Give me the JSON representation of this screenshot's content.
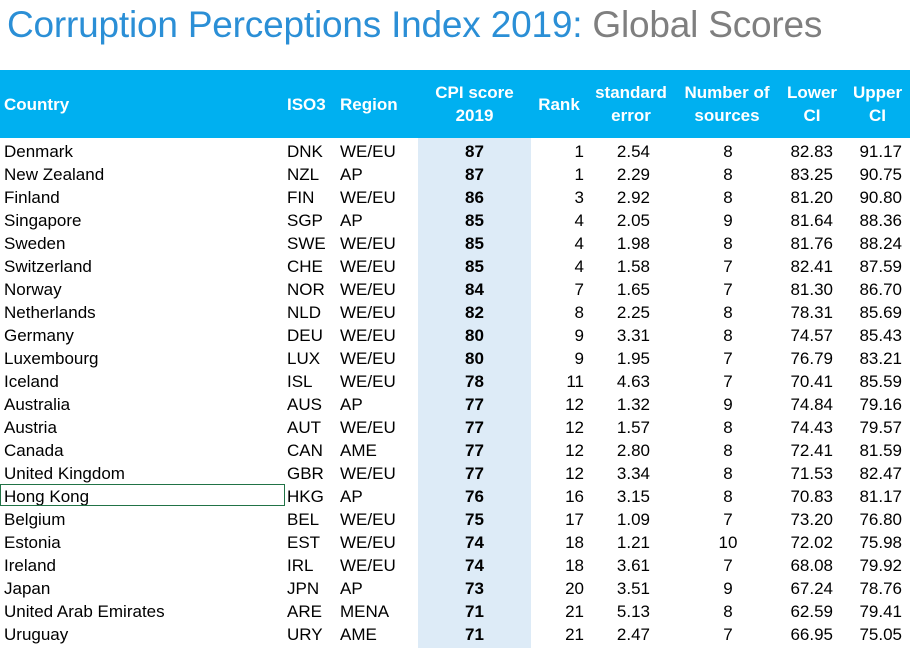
{
  "title": {
    "main": "Corruption Perceptions Index 2019:",
    "sub": "Global Scores"
  },
  "table": {
    "headers": {
      "country": "Country",
      "iso3": "ISO3",
      "region": "Region",
      "cpi_line1": "CPI score",
      "cpi_line2": "2019",
      "rank": "Rank",
      "se_line1": "standard",
      "se_line2": "error",
      "src_line1": "Number of",
      "src_line2": "sources",
      "lower_line1": "Lower",
      "lower_line2": "CI",
      "upper_line1": "Upper",
      "upper_line2": "CI"
    },
    "rows": [
      {
        "country": "Denmark",
        "iso3": "DNK",
        "region": "WE/EU",
        "cpi": "87",
        "rank": "1",
        "se": "2.54",
        "sources": "8",
        "lower": "82.83",
        "upper": "91.17"
      },
      {
        "country": "New Zealand",
        "iso3": "NZL",
        "region": "AP",
        "cpi": "87",
        "rank": "1",
        "se": "2.29",
        "sources": "8",
        "lower": "83.25",
        "upper": "90.75"
      },
      {
        "country": "Finland",
        "iso3": "FIN",
        "region": "WE/EU",
        "cpi": "86",
        "rank": "3",
        "se": "2.92",
        "sources": "8",
        "lower": "81.20",
        "upper": "90.80"
      },
      {
        "country": "Singapore",
        "iso3": "SGP",
        "region": "AP",
        "cpi": "85",
        "rank": "4",
        "se": "2.05",
        "sources": "9",
        "lower": "81.64",
        "upper": "88.36"
      },
      {
        "country": "Sweden",
        "iso3": "SWE",
        "region": "WE/EU",
        "cpi": "85",
        "rank": "4",
        "se": "1.98",
        "sources": "8",
        "lower": "81.76",
        "upper": "88.24"
      },
      {
        "country": "Switzerland",
        "iso3": "CHE",
        "region": "WE/EU",
        "cpi": "85",
        "rank": "4",
        "se": "1.58",
        "sources": "7",
        "lower": "82.41",
        "upper": "87.59"
      },
      {
        "country": "Norway",
        "iso3": "NOR",
        "region": "WE/EU",
        "cpi": "84",
        "rank": "7",
        "se": "1.65",
        "sources": "7",
        "lower": "81.30",
        "upper": "86.70"
      },
      {
        "country": "Netherlands",
        "iso3": "NLD",
        "region": "WE/EU",
        "cpi": "82",
        "rank": "8",
        "se": "2.25",
        "sources": "8",
        "lower": "78.31",
        "upper": "85.69"
      },
      {
        "country": "Germany",
        "iso3": "DEU",
        "region": "WE/EU",
        "cpi": "80",
        "rank": "9",
        "se": "3.31",
        "sources": "8",
        "lower": "74.57",
        "upper": "85.43"
      },
      {
        "country": "Luxembourg",
        "iso3": "LUX",
        "region": "WE/EU",
        "cpi": "80",
        "rank": "9",
        "se": "1.95",
        "sources": "7",
        "lower": "76.79",
        "upper": "83.21"
      },
      {
        "country": "Iceland",
        "iso3": "ISL",
        "region": "WE/EU",
        "cpi": "78",
        "rank": "11",
        "se": "4.63",
        "sources": "7",
        "lower": "70.41",
        "upper": "85.59"
      },
      {
        "country": "Australia",
        "iso3": "AUS",
        "region": "AP",
        "cpi": "77",
        "rank": "12",
        "se": "1.32",
        "sources": "9",
        "lower": "74.84",
        "upper": "79.16"
      },
      {
        "country": "Austria",
        "iso3": "AUT",
        "region": "WE/EU",
        "cpi": "77",
        "rank": "12",
        "se": "1.57",
        "sources": "8",
        "lower": "74.43",
        "upper": "79.57"
      },
      {
        "country": "Canada",
        "iso3": "CAN",
        "region": "AME",
        "cpi": "77",
        "rank": "12",
        "se": "2.80",
        "sources": "8",
        "lower": "72.41",
        "upper": "81.59"
      },
      {
        "country": "United Kingdom",
        "iso3": "GBR",
        "region": "WE/EU",
        "cpi": "77",
        "rank": "12",
        "se": "3.34",
        "sources": "8",
        "lower": "71.53",
        "upper": "82.47"
      },
      {
        "country": "Hong Kong",
        "iso3": "HKG",
        "region": "AP",
        "cpi": "76",
        "rank": "16",
        "se": "3.15",
        "sources": "8",
        "lower": "70.83",
        "upper": "81.17"
      },
      {
        "country": "Belgium",
        "iso3": "BEL",
        "region": "WE/EU",
        "cpi": "75",
        "rank": "17",
        "se": "1.09",
        "sources": "7",
        "lower": "73.20",
        "upper": "76.80"
      },
      {
        "country": "Estonia",
        "iso3": "EST",
        "region": "WE/EU",
        "cpi": "74",
        "rank": "18",
        "se": "1.21",
        "sources": "10",
        "lower": "72.02",
        "upper": "75.98"
      },
      {
        "country": "Ireland",
        "iso3": "IRL",
        "region": "WE/EU",
        "cpi": "74",
        "rank": "18",
        "se": "3.61",
        "sources": "7",
        "lower": "68.08",
        "upper": "79.92"
      },
      {
        "country": "Japan",
        "iso3": "JPN",
        "region": "AP",
        "cpi": "73",
        "rank": "20",
        "se": "3.51",
        "sources": "9",
        "lower": "67.24",
        "upper": "78.76"
      },
      {
        "country": "United Arab Emirates",
        "iso3": "ARE",
        "region": "MENA",
        "cpi": "71",
        "rank": "21",
        "se": "5.13",
        "sources": "8",
        "lower": "62.59",
        "upper": "79.41"
      },
      {
        "country": "Uruguay",
        "iso3": "URY",
        "region": "AME",
        "cpi": "71",
        "rank": "21",
        "se": "2.47",
        "sources": "7",
        "lower": "66.95",
        "upper": "75.05"
      }
    ]
  },
  "colors": {
    "title_main": "#2b8fd6",
    "title_sub": "#7f7f7f",
    "header_bg": "#00b0f0",
    "cpi_band": "#ddebf7",
    "selection_border": "#217346"
  }
}
